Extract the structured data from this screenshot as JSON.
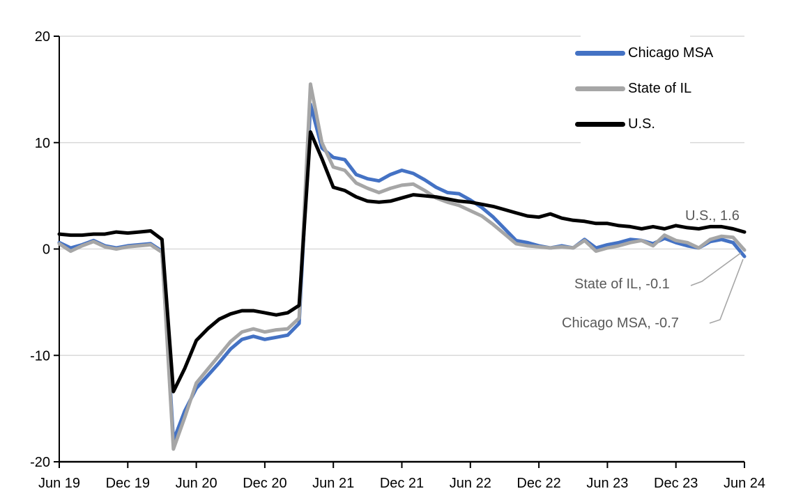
{
  "chart_data": {
    "type": "line",
    "x_tick_labels": [
      "Jun 19",
      "Dec 19",
      "Jun 20",
      "Dec 20",
      "Jun 21",
      "Dec 21",
      "Jun 22",
      "Dec 22",
      "Jun 23",
      "Dec 23",
      "Jun 24"
    ],
    "y_ticks": [
      20,
      10,
      0,
      -10,
      -20
    ],
    "ylim": [
      -20,
      20
    ],
    "grid": true,
    "legend_position": "top-right",
    "gridline_color": "#D9D9D9",
    "axis_color": "#000000",
    "annotation_text_color": "#595959",
    "leader_line_color": "#A6A6A6",
    "x_frequency": "monthly",
    "x_range": [
      "Jun 2019",
      "Jun 2024"
    ],
    "series": [
      {
        "name": "Chicago MSA",
        "color": "#4472C4",
        "values": [
          0.6,
          0.1,
          0.4,
          0.8,
          0.3,
          0.1,
          0.3,
          0.4,
          0.5,
          -0.2,
          -18.0,
          -15.2,
          -13.1,
          -11.9,
          -10.7,
          -9.4,
          -8.5,
          -8.2,
          -8.5,
          -8.3,
          -8.1,
          -7.0,
          13.6,
          9.5,
          8.6,
          8.4,
          7.0,
          6.6,
          6.4,
          7.0,
          7.4,
          7.1,
          6.5,
          5.8,
          5.3,
          5.2,
          4.6,
          3.9,
          3.0,
          1.9,
          0.8,
          0.6,
          0.3,
          0.1,
          0.3,
          0.1,
          0.9,
          0.1,
          0.4,
          0.6,
          0.9,
          0.8,
          0.5,
          1.0,
          0.6,
          0.3,
          0.1,
          0.7,
          0.9,
          0.6,
          -0.7
        ]
      },
      {
        "name": "State of IL",
        "color": "#A6A6A6",
        "values": [
          0.5,
          -0.2,
          0.3,
          0.7,
          0.2,
          0.0,
          0.2,
          0.3,
          0.4,
          -0.3,
          -18.8,
          -15.8,
          -12.6,
          -11.3,
          -10.0,
          -8.7,
          -7.8,
          -7.5,
          -7.8,
          -7.6,
          -7.5,
          -6.5,
          15.5,
          10.0,
          7.7,
          7.4,
          6.2,
          5.7,
          5.3,
          5.7,
          6.0,
          6.1,
          5.5,
          4.8,
          4.4,
          4.1,
          3.6,
          3.1,
          2.3,
          1.4,
          0.5,
          0.3,
          0.2,
          0.1,
          0.2,
          0.1,
          0.8,
          -0.2,
          0.1,
          0.3,
          0.6,
          0.8,
          0.3,
          1.3,
          0.8,
          0.6,
          0.1,
          0.9,
          1.2,
          1.1,
          -0.1
        ]
      },
      {
        "name": "U.S.",
        "color": "#000000",
        "values": [
          1.4,
          1.3,
          1.3,
          1.4,
          1.4,
          1.6,
          1.5,
          1.6,
          1.7,
          0.9,
          -13.4,
          -11.2,
          -8.6,
          -7.5,
          -6.6,
          -6.1,
          -5.8,
          -5.8,
          -6.0,
          -6.2,
          -6.0,
          -5.3,
          11.0,
          8.5,
          5.8,
          5.5,
          4.9,
          4.5,
          4.4,
          4.5,
          4.8,
          5.1,
          5.0,
          4.9,
          4.7,
          4.5,
          4.4,
          4.2,
          4.0,
          3.7,
          3.4,
          3.1,
          3.0,
          3.3,
          2.9,
          2.7,
          2.6,
          2.4,
          2.4,
          2.2,
          2.1,
          1.9,
          2.1,
          1.9,
          2.2,
          2.0,
          1.9,
          2.1,
          2.1,
          1.9,
          1.6
        ]
      }
    ],
    "annotations": [
      {
        "series": "U.S.",
        "value": 1.6,
        "label": "U.S., 1.6"
      },
      {
        "series": "State of IL",
        "value": -0.1,
        "label": "State of IL, -0.1"
      },
      {
        "series": "Chicago MSA",
        "value": -0.7,
        "label": "Chicago MSA, -0.7"
      }
    ]
  }
}
